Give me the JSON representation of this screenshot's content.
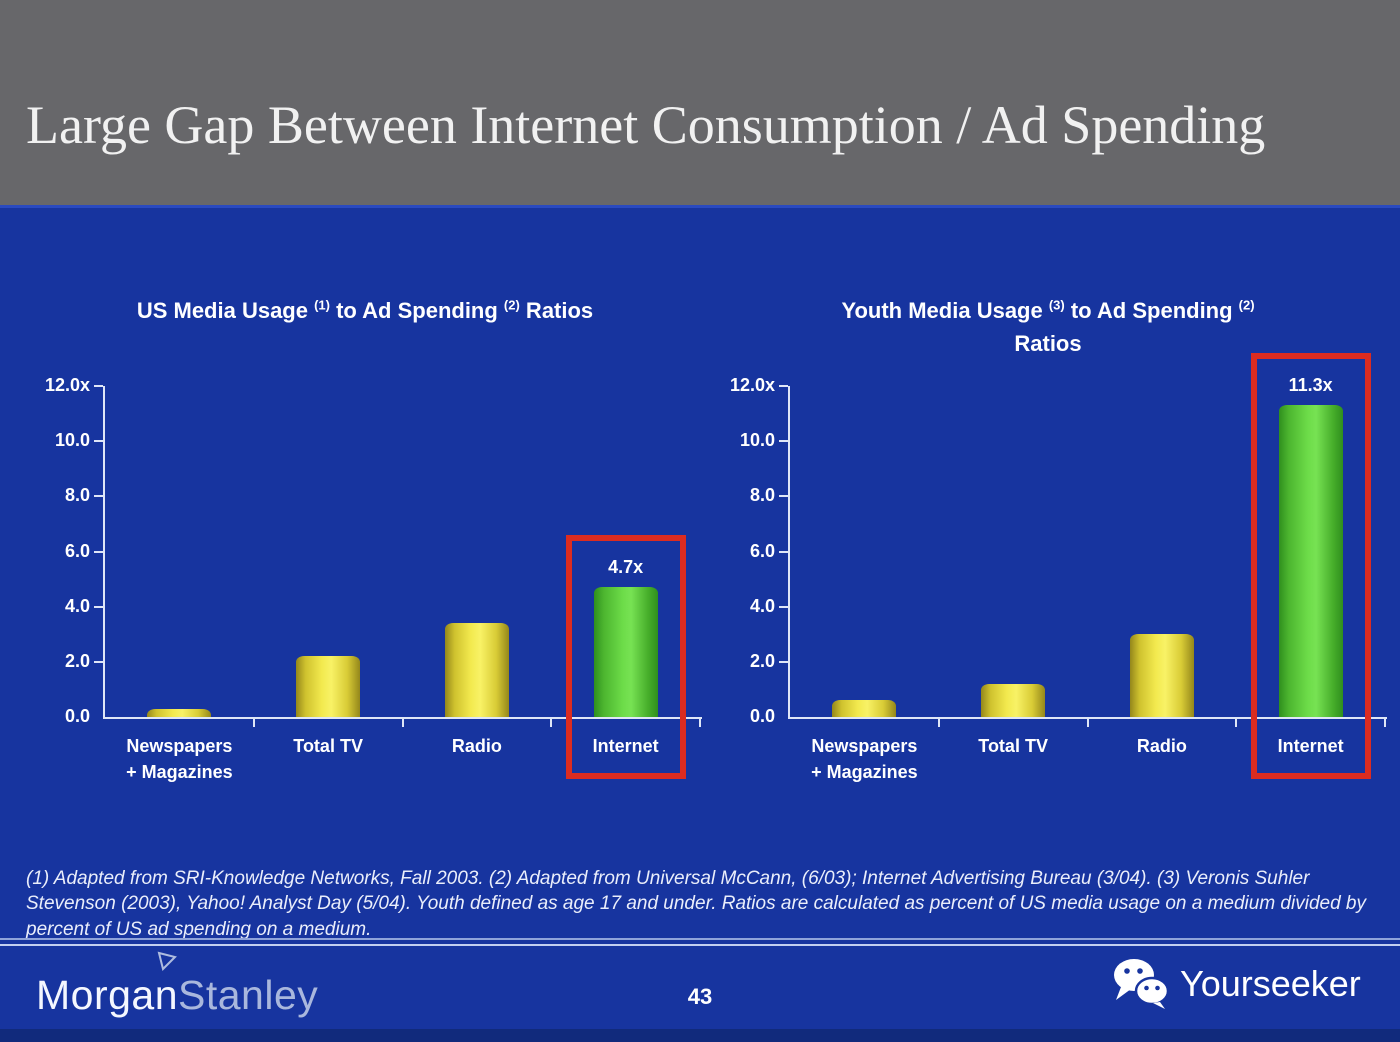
{
  "slide": {
    "title": "Large Gap Between Internet Consumption / Ad Spending",
    "footnote": "(1) Adapted from SRI-Knowledge Networks, Fall 2003.  (2) Adapted from Universal McCann, (6/03); Internet Advertising Bureau (3/04). (3) Veronis Suhler Stevenson (2003), Yahoo! Analyst Day (5/04).  Youth defined as age 17 and under.  Ratios are calculated as percent of US media usage on a medium divided by percent of US ad spending on a medium."
  },
  "footer": {
    "brand_part1": "Morgan",
    "brand_part2": "Stanley",
    "page_number": "43",
    "watermark_label": "Yourseeker",
    "watermark_icon": "wechat-icon"
  },
  "colors": {
    "background_blue": "#17349f",
    "header_gray": "#67676a",
    "bar_yellow": "#f2e94e",
    "bar_green": "#6ddc49",
    "highlight_red": "#dc2c20",
    "axis_white": "#dfe6f7",
    "bottom_strip": "#112a7c"
  },
  "chart_data": [
    {
      "type": "bar",
      "title": "US Media Usage (1) to Ad Spending (2) Ratios",
      "title_segments": [
        {
          "text": "US Media Usage "
        },
        {
          "sup": "(1)"
        },
        {
          "text": " to Ad Spending "
        },
        {
          "sup": "(2)"
        },
        {
          "text": " Ratios"
        }
      ],
      "categories": [
        "Newspapers\n+ Magazines",
        "Total TV",
        "Radio",
        "Internet"
      ],
      "values": [
        0.3,
        2.2,
        3.4,
        4.7
      ],
      "bar_colors": [
        "yellow",
        "yellow",
        "yellow",
        "green"
      ],
      "value_labels": [
        null,
        null,
        null,
        "4.7x"
      ],
      "highlight_index": 3,
      "xlabel": "",
      "ylabel": "",
      "ylim": [
        0,
        12
      ],
      "yticks": [
        "12.0x",
        "10.0",
        "8.0",
        "6.0",
        "4.0",
        "2.0",
        "0.0"
      ],
      "grid": false,
      "legend": false
    },
    {
      "type": "bar",
      "title": "Youth Media Usage (3) to Ad Spending (2) Ratios",
      "title_segments": [
        {
          "text": "Youth Media Usage "
        },
        {
          "sup": "(3)"
        },
        {
          "text": " to Ad Spending "
        },
        {
          "sup": "(2)"
        },
        {
          "br": true
        },
        {
          "text": "Ratios"
        }
      ],
      "categories": [
        "Newspapers\n+ Magazines",
        "Total TV",
        "Radio",
        "Internet"
      ],
      "values": [
        0.6,
        1.2,
        3.0,
        11.3
      ],
      "bar_colors": [
        "yellow",
        "yellow",
        "yellow",
        "green"
      ],
      "value_labels": [
        null,
        null,
        null,
        "11.3x"
      ],
      "highlight_index": 3,
      "xlabel": "",
      "ylabel": "",
      "ylim": [
        0,
        12
      ],
      "yticks": [
        "12.0x",
        "10.0",
        "8.0",
        "6.0",
        "4.0",
        "2.0",
        "0.0"
      ],
      "grid": false,
      "legend": false
    }
  ]
}
